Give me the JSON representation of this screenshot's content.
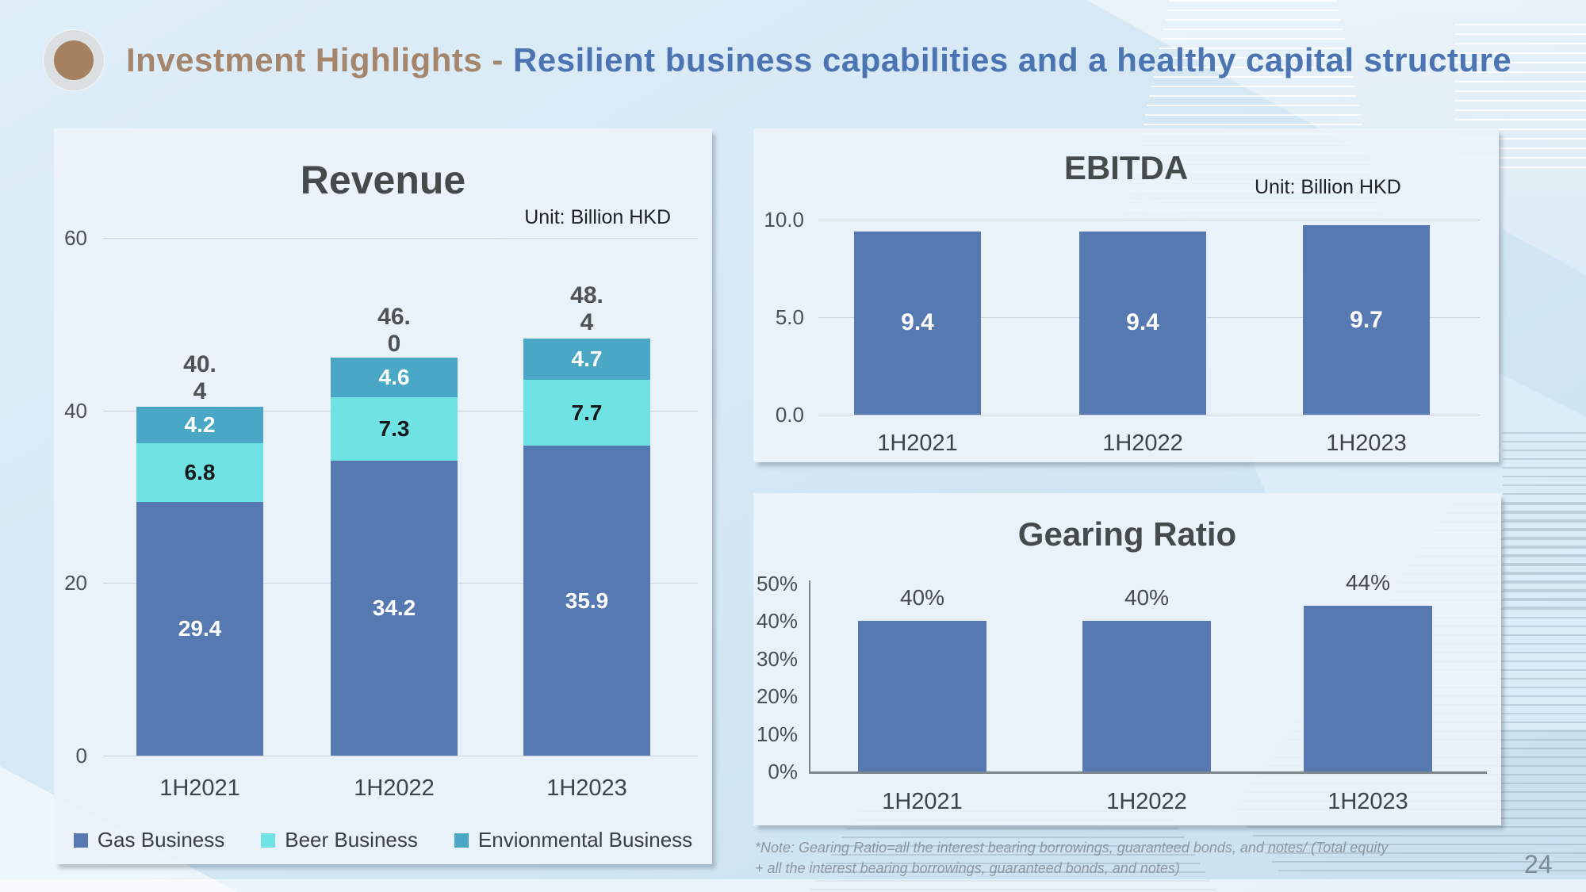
{
  "header": {
    "title_prefix": "Investment Highlights - ",
    "title_emphasis": "Resilient business capabilities and a healthy capital structure"
  },
  "footer": {
    "note": "*Note:  Gearing Ratio=all the interest bearing borrowings, guaranteed bonds, and notes/ (Total equity + all the interest bearing borrowings, guaranteed bonds, and notes)",
    "page_number": "24"
  },
  "colors": {
    "gas_blue": "#5679B1",
    "beer_cyan": "#6FE3E4",
    "env_teal": "#4AA8C6",
    "title_brown": "#A6856D",
    "title_blue": "#4C74B2"
  },
  "chart_data": [
    {
      "id": "revenue",
      "type": "bar",
      "stacked": true,
      "title": "Revenue",
      "unit_label": "Unit: Billion HKD",
      "categories": [
        "1H2021",
        "1H2022",
        "1H2023"
      ],
      "series": [
        {
          "name": "Gas Business",
          "color_key": "gas_blue",
          "values": [
            29.4,
            34.2,
            35.9
          ],
          "labels": [
            "29.4",
            "34.2",
            "35.9"
          ],
          "label_color": "#FFFFFF"
        },
        {
          "name": "Beer Business",
          "color_key": "beer_cyan",
          "values": [
            6.8,
            7.3,
            7.7
          ],
          "labels": [
            "6.8",
            "7.3",
            "7.7"
          ],
          "label_color": "#15181B"
        },
        {
          "name": "Envionmental Business",
          "color_key": "env_teal",
          "values": [
            4.2,
            4.6,
            4.7
          ],
          "labels": [
            "4.2",
            "4.6",
            "4.7"
          ],
          "label_color": "#FFFFFF"
        }
      ],
      "totals": [
        40.4,
        46.0,
        48.4
      ],
      "total_labels": [
        "40.\n4",
        "46.\n0",
        "48.\n4"
      ],
      "ylim": [
        0,
        60
      ],
      "yticks": [
        {
          "value": 60,
          "label": "60"
        },
        {
          "value": 40,
          "label": "40"
        },
        {
          "value": 20,
          "label": "20"
        },
        {
          "value": 0,
          "label": "0"
        }
      ],
      "grid": true,
      "legend_position": "bottom",
      "legend": [
        "Gas Business",
        "Beer Business",
        "Envionmental Business"
      ]
    },
    {
      "id": "ebitda",
      "type": "bar",
      "title": "EBITDA",
      "unit_label": "Unit: Billion HKD",
      "categories": [
        "1H2021",
        "1H2022",
        "1H2023"
      ],
      "values": [
        9.4,
        9.4,
        9.7
      ],
      "value_labels": [
        "9.4",
        "9.4",
        "9.7"
      ],
      "value_label_position": "inside",
      "ylim": [
        0,
        10
      ],
      "yticks": [
        {
          "value": 10,
          "label": "10.0"
        },
        {
          "value": 5,
          "label": "5.0"
        },
        {
          "value": 0,
          "label": "0.0"
        }
      ],
      "grid": true
    },
    {
      "id": "gearing",
      "type": "bar",
      "title": "Gearing Ratio",
      "categories": [
        "1H2021",
        "1H2022",
        "1H2023"
      ],
      "values": [
        40,
        40,
        44
      ],
      "value_labels": [
        "40%",
        "40%",
        "44%"
      ],
      "value_label_position": "above",
      "ylim": [
        0,
        50
      ],
      "yticks": [
        {
          "value": 50,
          "label": "50%"
        },
        {
          "value": 40,
          "label": "40%"
        },
        {
          "value": 30,
          "label": "30%"
        },
        {
          "value": 20,
          "label": "20%"
        },
        {
          "value": 10,
          "label": "10%"
        },
        {
          "value": 0,
          "label": "0%"
        }
      ],
      "grid": false,
      "axis_lines": true
    }
  ]
}
